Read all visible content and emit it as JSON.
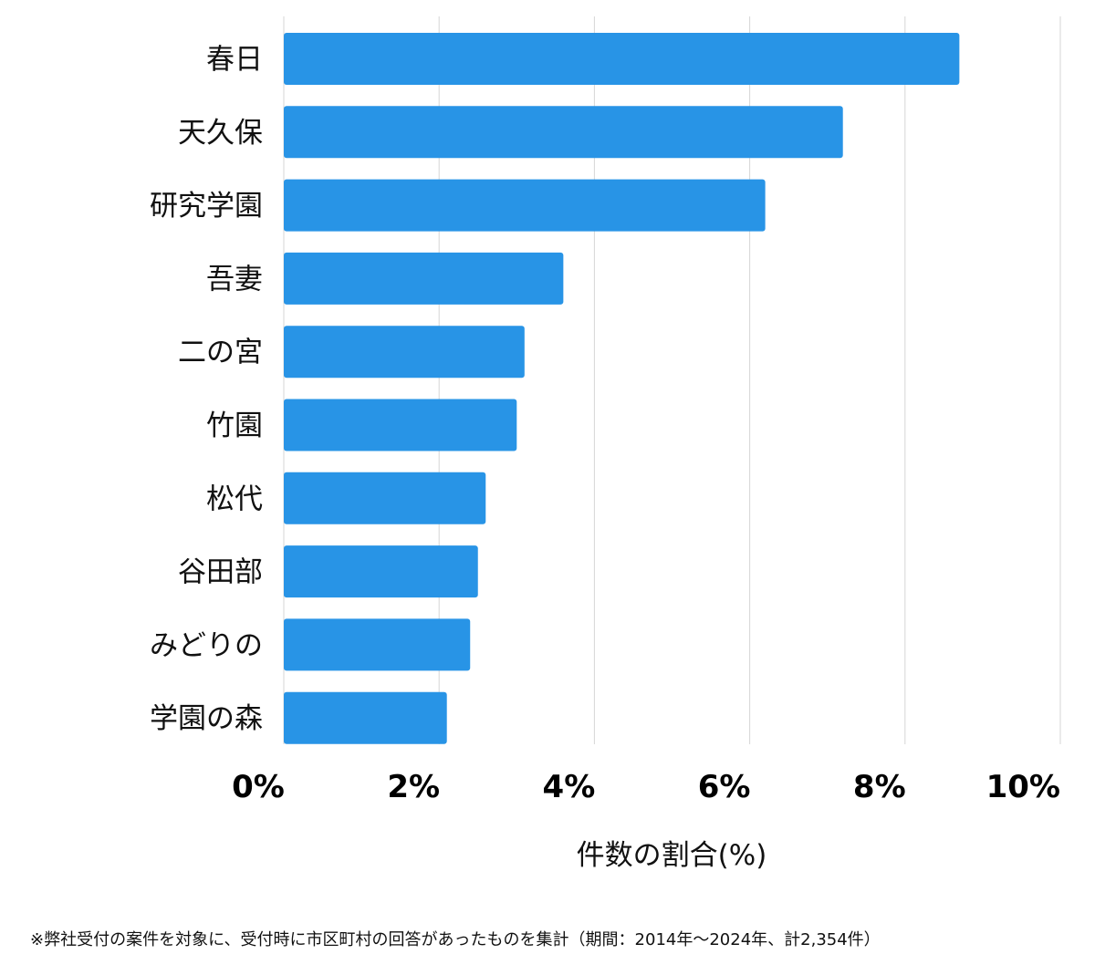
{
  "chart_data": {
    "type": "bar",
    "orientation": "horizontal",
    "categories": [
      "春日",
      "天久保",
      "研究学園",
      "吾妻",
      "二の宮",
      "竹園",
      "松代",
      "谷田部",
      "みどりの",
      "学園の森"
    ],
    "values": [
      8.7,
      7.2,
      6.2,
      3.6,
      3.1,
      3.0,
      2.6,
      2.5,
      2.4,
      2.1
    ],
    "xlim": [
      0,
      10
    ],
    "xticks": [
      0,
      2,
      4,
      6,
      8,
      10
    ],
    "xtick_labels": [
      "0%",
      "2%",
      "4%",
      "6%",
      "8%",
      "10%"
    ],
    "xlabel": "件数の割合(%)",
    "grid": "vertical",
    "bar_color": "#2894e6",
    "grid_color": "#d6d6d6"
  },
  "footnote": "※弊社受付の案件を対象に、受付時に市区町村の回答があったものを集計（期間：2014年～2024年、計2,354件）"
}
